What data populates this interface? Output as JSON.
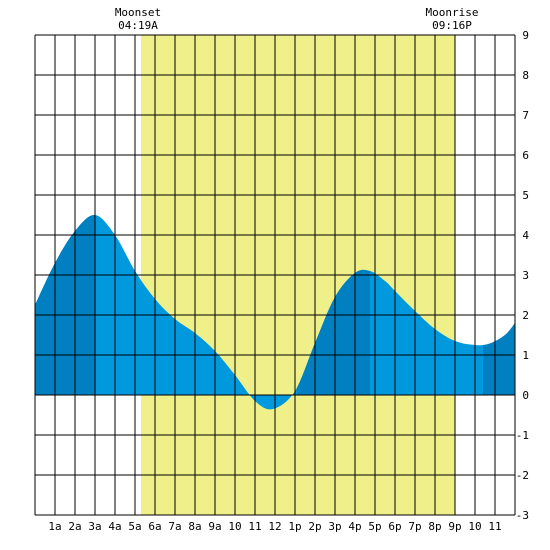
{
  "chart_data": {
    "type": "area",
    "title": "",
    "xlabel": "",
    "ylabel": "",
    "x_range_hours": [
      0,
      24
    ],
    "ylim": [
      -3,
      9
    ],
    "y_ticks": [
      "-3",
      "-2",
      "-1",
      "0",
      "1",
      "2",
      "3",
      "4",
      "5",
      "6",
      "7",
      "8",
      "9"
    ],
    "x_tick_labels": [
      {
        "hour": 1,
        "label": "1a"
      },
      {
        "hour": 2,
        "label": "2a"
      },
      {
        "hour": 3,
        "label": "3a"
      },
      {
        "hour": 4,
        "label": "4a"
      },
      {
        "hour": 5,
        "label": "5a"
      },
      {
        "hour": 6,
        "label": "6a"
      },
      {
        "hour": 7,
        "label": "7a"
      },
      {
        "hour": 8,
        "label": "8a"
      },
      {
        "hour": 9,
        "label": "9a"
      },
      {
        "hour": 10,
        "label": "10"
      },
      {
        "hour": 11,
        "label": "11"
      },
      {
        "hour": 12,
        "label": "12"
      },
      {
        "hour": 13,
        "label": "1p"
      },
      {
        "hour": 14,
        "label": "2p"
      },
      {
        "hour": 15,
        "label": "3p"
      },
      {
        "hour": 16,
        "label": "4p"
      },
      {
        "hour": 17,
        "label": "5p"
      },
      {
        "hour": 18,
        "label": "6p"
      },
      {
        "hour": 19,
        "label": "7p"
      },
      {
        "hour": 20,
        "label": "8p"
      },
      {
        "hour": 21,
        "label": "9p"
      },
      {
        "hour": 22,
        "label": "10"
      },
      {
        "hour": 23,
        "label": "11"
      }
    ],
    "grid": true,
    "daylight": {
      "start_hour": 5.3,
      "end_hour": 21.0,
      "color": "#f0f08a"
    },
    "colors": {
      "water": "#0099dd",
      "water_dark": "#0080c0",
      "grid": "#000000",
      "background": "#ffffff"
    },
    "dark_bands": [
      [
        0,
        3.0
      ],
      [
        13.1,
        16.75
      ],
      [
        22.4,
        24
      ]
    ],
    "tide_curve": [
      {
        "x": 0,
        "y": 2.25
      },
      {
        "x": 1,
        "y": 3.3
      },
      {
        "x": 2,
        "y": 4.1
      },
      {
        "x": 3,
        "y": 4.5
      },
      {
        "x": 4,
        "y": 4.0
      },
      {
        "x": 5,
        "y": 3.1
      },
      {
        "x": 6,
        "y": 2.4
      },
      {
        "x": 7,
        "y": 1.9
      },
      {
        "x": 8,
        "y": 1.55
      },
      {
        "x": 9,
        "y": 1.1
      },
      {
        "x": 10,
        "y": 0.5
      },
      {
        "x": 11,
        "y": -0.15
      },
      {
        "x": 11.9,
        "y": -0.35
      },
      {
        "x": 13,
        "y": 0.1
      },
      {
        "x": 14,
        "y": 1.3
      },
      {
        "x": 15,
        "y": 2.45
      },
      {
        "x": 16,
        "y": 3.05
      },
      {
        "x": 16.75,
        "y": 3.1
      },
      {
        "x": 17.5,
        "y": 2.85
      },
      {
        "x": 18,
        "y": 2.6
      },
      {
        "x": 19,
        "y": 2.1
      },
      {
        "x": 20,
        "y": 1.65
      },
      {
        "x": 21,
        "y": 1.35
      },
      {
        "x": 22,
        "y": 1.25
      },
      {
        "x": 22.7,
        "y": 1.28
      },
      {
        "x": 23.5,
        "y": 1.5
      },
      {
        "x": 24,
        "y": 1.8
      }
    ],
    "moon_events": [
      {
        "name": "Moonset",
        "time": "04:19A",
        "hour": 5.3
      },
      {
        "name": "Moonrise",
        "time": "09:16P",
        "hour": 21.0
      }
    ]
  }
}
